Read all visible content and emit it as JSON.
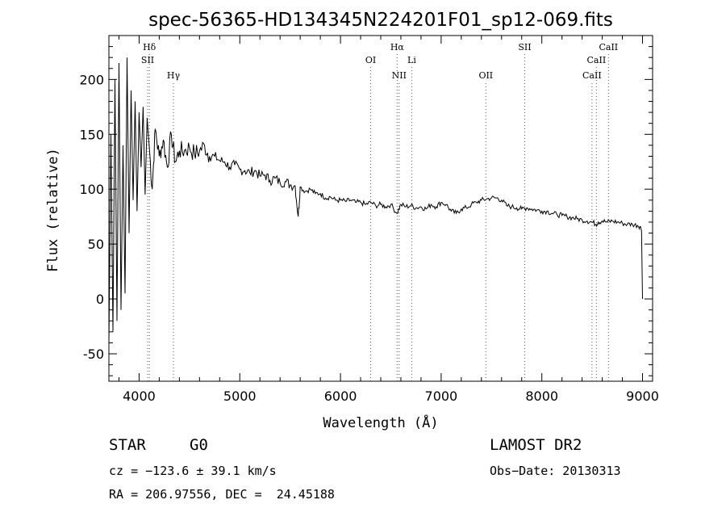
{
  "chart_data": {
    "type": "line",
    "title": "spec-56365-HD134345N224201F01_sp12-069.fits",
    "xlabel": "Wavelength (Å)",
    "ylabel": "Flux (relative)",
    "xlim": [
      3700,
      9100
    ],
    "ylim": [
      -75,
      240
    ],
    "xticks": [
      4000,
      5000,
      6000,
      7000,
      8000,
      9000
    ],
    "yticks": [
      -50,
      0,
      50,
      100,
      150,
      200
    ],
    "grid": false,
    "series": [
      {
        "x": [
          3700,
          3720,
          3740,
          3760,
          3780,
          3800,
          3820,
          3840,
          3860,
          3880,
          3900,
          3920,
          3940,
          3960,
          3980,
          4000,
          4020,
          4040,
          4060,
          4080,
          4100,
          4130,
          4160,
          4200,
          4240,
          4280,
          4320,
          4360,
          4400,
          4450,
          4500,
          4550,
          4600,
          4650,
          4700,
          4750,
          4800,
          4850,
          4900,
          4950,
          5000,
          5050,
          5100,
          5150,
          5200,
          5250,
          5300,
          5350,
          5400,
          5450,
          5500,
          5550,
          5580,
          5600,
          5650,
          5700,
          5750,
          5800,
          5850,
          5900,
          5950,
          6000,
          6050,
          6100,
          6150,
          6200,
          6250,
          6300,
          6350,
          6400,
          6450,
          6500,
          6560,
          6600,
          6650,
          6700,
          6750,
          6800,
          6850,
          6900,
          6950,
          7000,
          7050,
          7100,
          7150,
          7200,
          7250,
          7300,
          7350,
          7400,
          7450,
          7500,
          7550,
          7600,
          7650,
          7700,
          7750,
          7800,
          7850,
          7900,
          7950,
          8000,
          8050,
          8100,
          8150,
          8200,
          8250,
          8300,
          8350,
          8400,
          8450,
          8500,
          8540,
          8560,
          8600,
          8650,
          8700,
          8750,
          8800,
          8850,
          8900,
          8950,
          8980,
          8990,
          9000
        ],
        "y": [
          -40,
          150,
          -30,
          200,
          -20,
          215,
          -10,
          140,
          5,
          220,
          60,
          190,
          90,
          180,
          80,
          170,
          120,
          175,
          95,
          165,
          140,
          100,
          155,
          130,
          145,
          120,
          150,
          125,
          135,
          135,
          138,
          132,
          135,
          140,
          130,
          130,
          126,
          125,
          120,
          122,
          118,
          117,
          115,
          117,
          112,
          113,
          108,
          110,
          106,
          107,
          104,
          103,
          75,
          102,
          98,
          100,
          96,
          96,
          92,
          93,
          90,
          90,
          89,
          90,
          88,
          88,
          86,
          88,
          85,
          86,
          84,
          86,
          78,
          86,
          84,
          85,
          83,
          84,
          82,
          86,
          84,
          88,
          86,
          80,
          78,
          82,
          83,
          86,
          88,
          90,
          91,
          92,
          92,
          90,
          85,
          84,
          83,
          82,
          83,
          82,
          81,
          80,
          80,
          78,
          77,
          76,
          75,
          74,
          73,
          72,
          71,
          70,
          68,
          70,
          71,
          70,
          71,
          70,
          69,
          68,
          68,
          67,
          66,
          62,
          0
        ]
      }
    ],
    "line_markers": [
      {
        "label": "Hδ",
        "wavelength": 4102,
        "row": 0
      },
      {
        "label": "SII",
        "wavelength": 4085,
        "row": 1
      },
      {
        "label": "Hγ",
        "wavelength": 4341,
        "row": 2
      },
      {
        "label": "OI",
        "wavelength": 6300,
        "row": 1
      },
      {
        "label": "Hα",
        "wavelength": 6563,
        "row": 0
      },
      {
        "label": "Li",
        "wavelength": 6708,
        "row": 1
      },
      {
        "label": "NII",
        "wavelength": 6583,
        "row": 2
      },
      {
        "label": "OII",
        "wavelength": 7444,
        "row": 2
      },
      {
        "label": "SII",
        "wavelength": 7830,
        "row": 0
      },
      {
        "label": "CaII",
        "wavelength": 8662,
        "row": 0
      },
      {
        "label": "CaII",
        "wavelength": 8542,
        "row": 1
      },
      {
        "label": "CaII",
        "wavelength": 8498,
        "row": 2
      }
    ]
  },
  "info": {
    "class": "STAR",
    "subclass": "G0",
    "survey": "LAMOST DR2",
    "cz": "cz = −123.6 ± 39.1 km/s",
    "obs_date": "Obs−Date: 20130313",
    "radec": "RA = 206.97556, DEC =  24.45188"
  }
}
